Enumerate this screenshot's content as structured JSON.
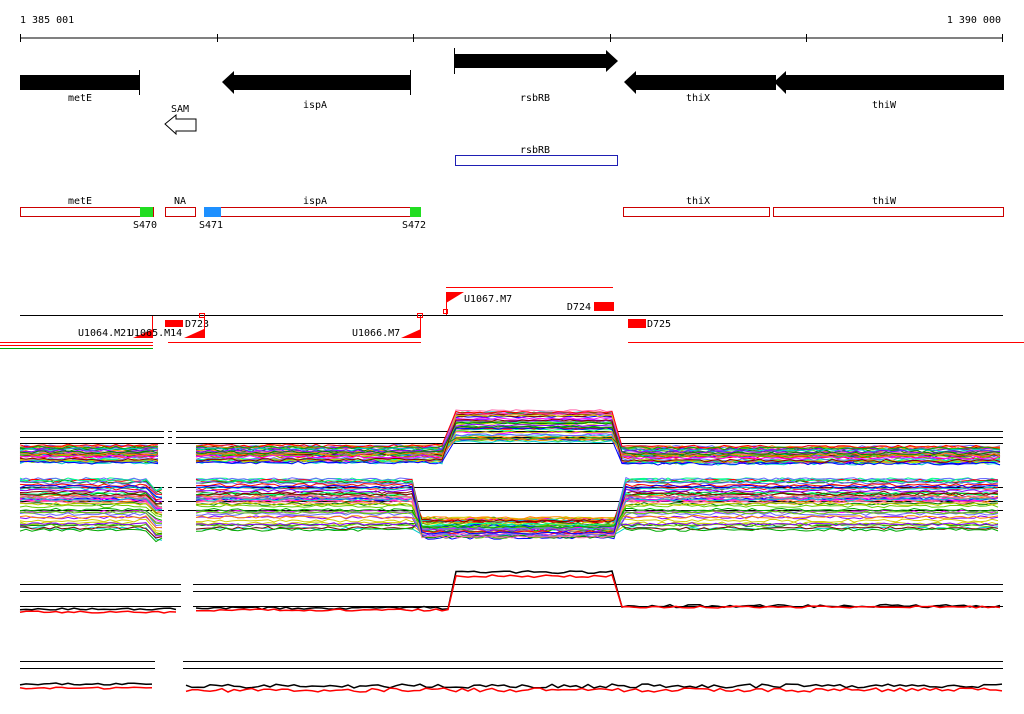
{
  "ruler": {
    "start_label": "1 385 001",
    "end_label": "1 390 000"
  },
  "genes": [
    {
      "name": "metE",
      "strand": "-"
    },
    {
      "name": "ispA",
      "strand": "-"
    },
    {
      "name": "rsbRB",
      "strand": "+"
    },
    {
      "name": "thiX",
      "strand": "-"
    },
    {
      "name": "thiW",
      "strand": "-"
    }
  ],
  "riboswitch": {
    "name": "SAM",
    "strand": "-"
  },
  "protein_box": {
    "name": "rsbRB"
  },
  "transcription_units": [
    {
      "name": "metE"
    },
    {
      "name": "NA"
    },
    {
      "name": "ispA"
    },
    {
      "name": "thiX"
    },
    {
      "name": "thiW"
    }
  ],
  "segment_labels": [
    "S470",
    "S471",
    "S472"
  ],
  "segment_colors": {
    "S470": "#22dd22",
    "S471": "#1e90ff",
    "S472": "#22dd22"
  },
  "upshifts": [
    "U1064.M21",
    "U1065.M14",
    "U1066.M7",
    "U1067.M7"
  ],
  "downshifts": [
    "D723",
    "D724",
    "D725"
  ],
  "colors": {
    "gene_arrow": "#000000",
    "tu_outline": "#cc0000",
    "protein_outline": "#1f1fb4",
    "marker": "#ff0000"
  }
}
